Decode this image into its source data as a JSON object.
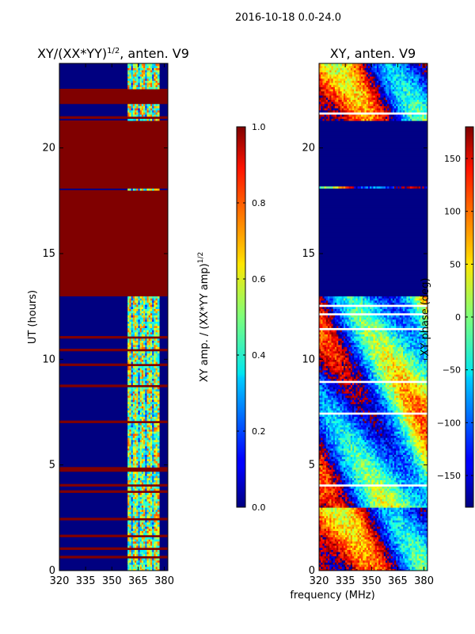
{
  "suptitle": "2016-10-18 0.0-24.0",
  "xlabel_shared": "frequency (MHz)",
  "chart_data": [
    {
      "type": "heatmap",
      "title_main": "XY/(XX*YY)",
      "title_sup": "1/2",
      "title_rest": ", anten. V9",
      "ylabel": "UT (hours)",
      "xlim": [
        320,
        382
      ],
      "ylim": [
        0,
        24
      ],
      "xticks": [
        320,
        335,
        350,
        365,
        380
      ],
      "yticks": [
        0,
        5,
        10,
        15,
        20
      ],
      "background_value": 0.0,
      "active_band_mhz": [
        359,
        376
      ],
      "saturated_blocks_hours": [
        [
          13.0,
          18.0
        ],
        [
          18.2,
          21.3
        ],
        [
          22.1,
          22.8
        ]
      ],
      "colorbar": {
        "label_main": "XY amp. / (XX*YY amp)",
        "label_sup": "1/2",
        "range": [
          0.0,
          1.0
        ],
        "ticks": [
          "0.0",
          "0.2",
          "0.4",
          "0.6",
          "0.8",
          "1.0"
        ],
        "tick_values": [
          0.0,
          0.2,
          0.4,
          0.6,
          0.8,
          1.0
        ]
      }
    },
    {
      "type": "heatmap",
      "title": "XY, anten. V9",
      "xlim": [
        320,
        382
      ],
      "ylim": [
        0,
        24
      ],
      "xticks": [
        320,
        335,
        350,
        365,
        380
      ],
      "yticks": [
        0,
        5,
        10,
        15,
        20
      ],
      "flat_phase_blocks_hours": [
        [
          13.0,
          18.1
        ],
        [
          18.2,
          21.3
        ]
      ],
      "colorbar": {
        "label": "XY phase (deg)",
        "range": [
          -180,
          180
        ],
        "ticks": [
          "−150",
          "−100",
          "−50",
          "0",
          "50",
          "100",
          "150"
        ],
        "tick_values": [
          -150,
          -100,
          -50,
          0,
          50,
          100,
          150
        ]
      }
    }
  ]
}
